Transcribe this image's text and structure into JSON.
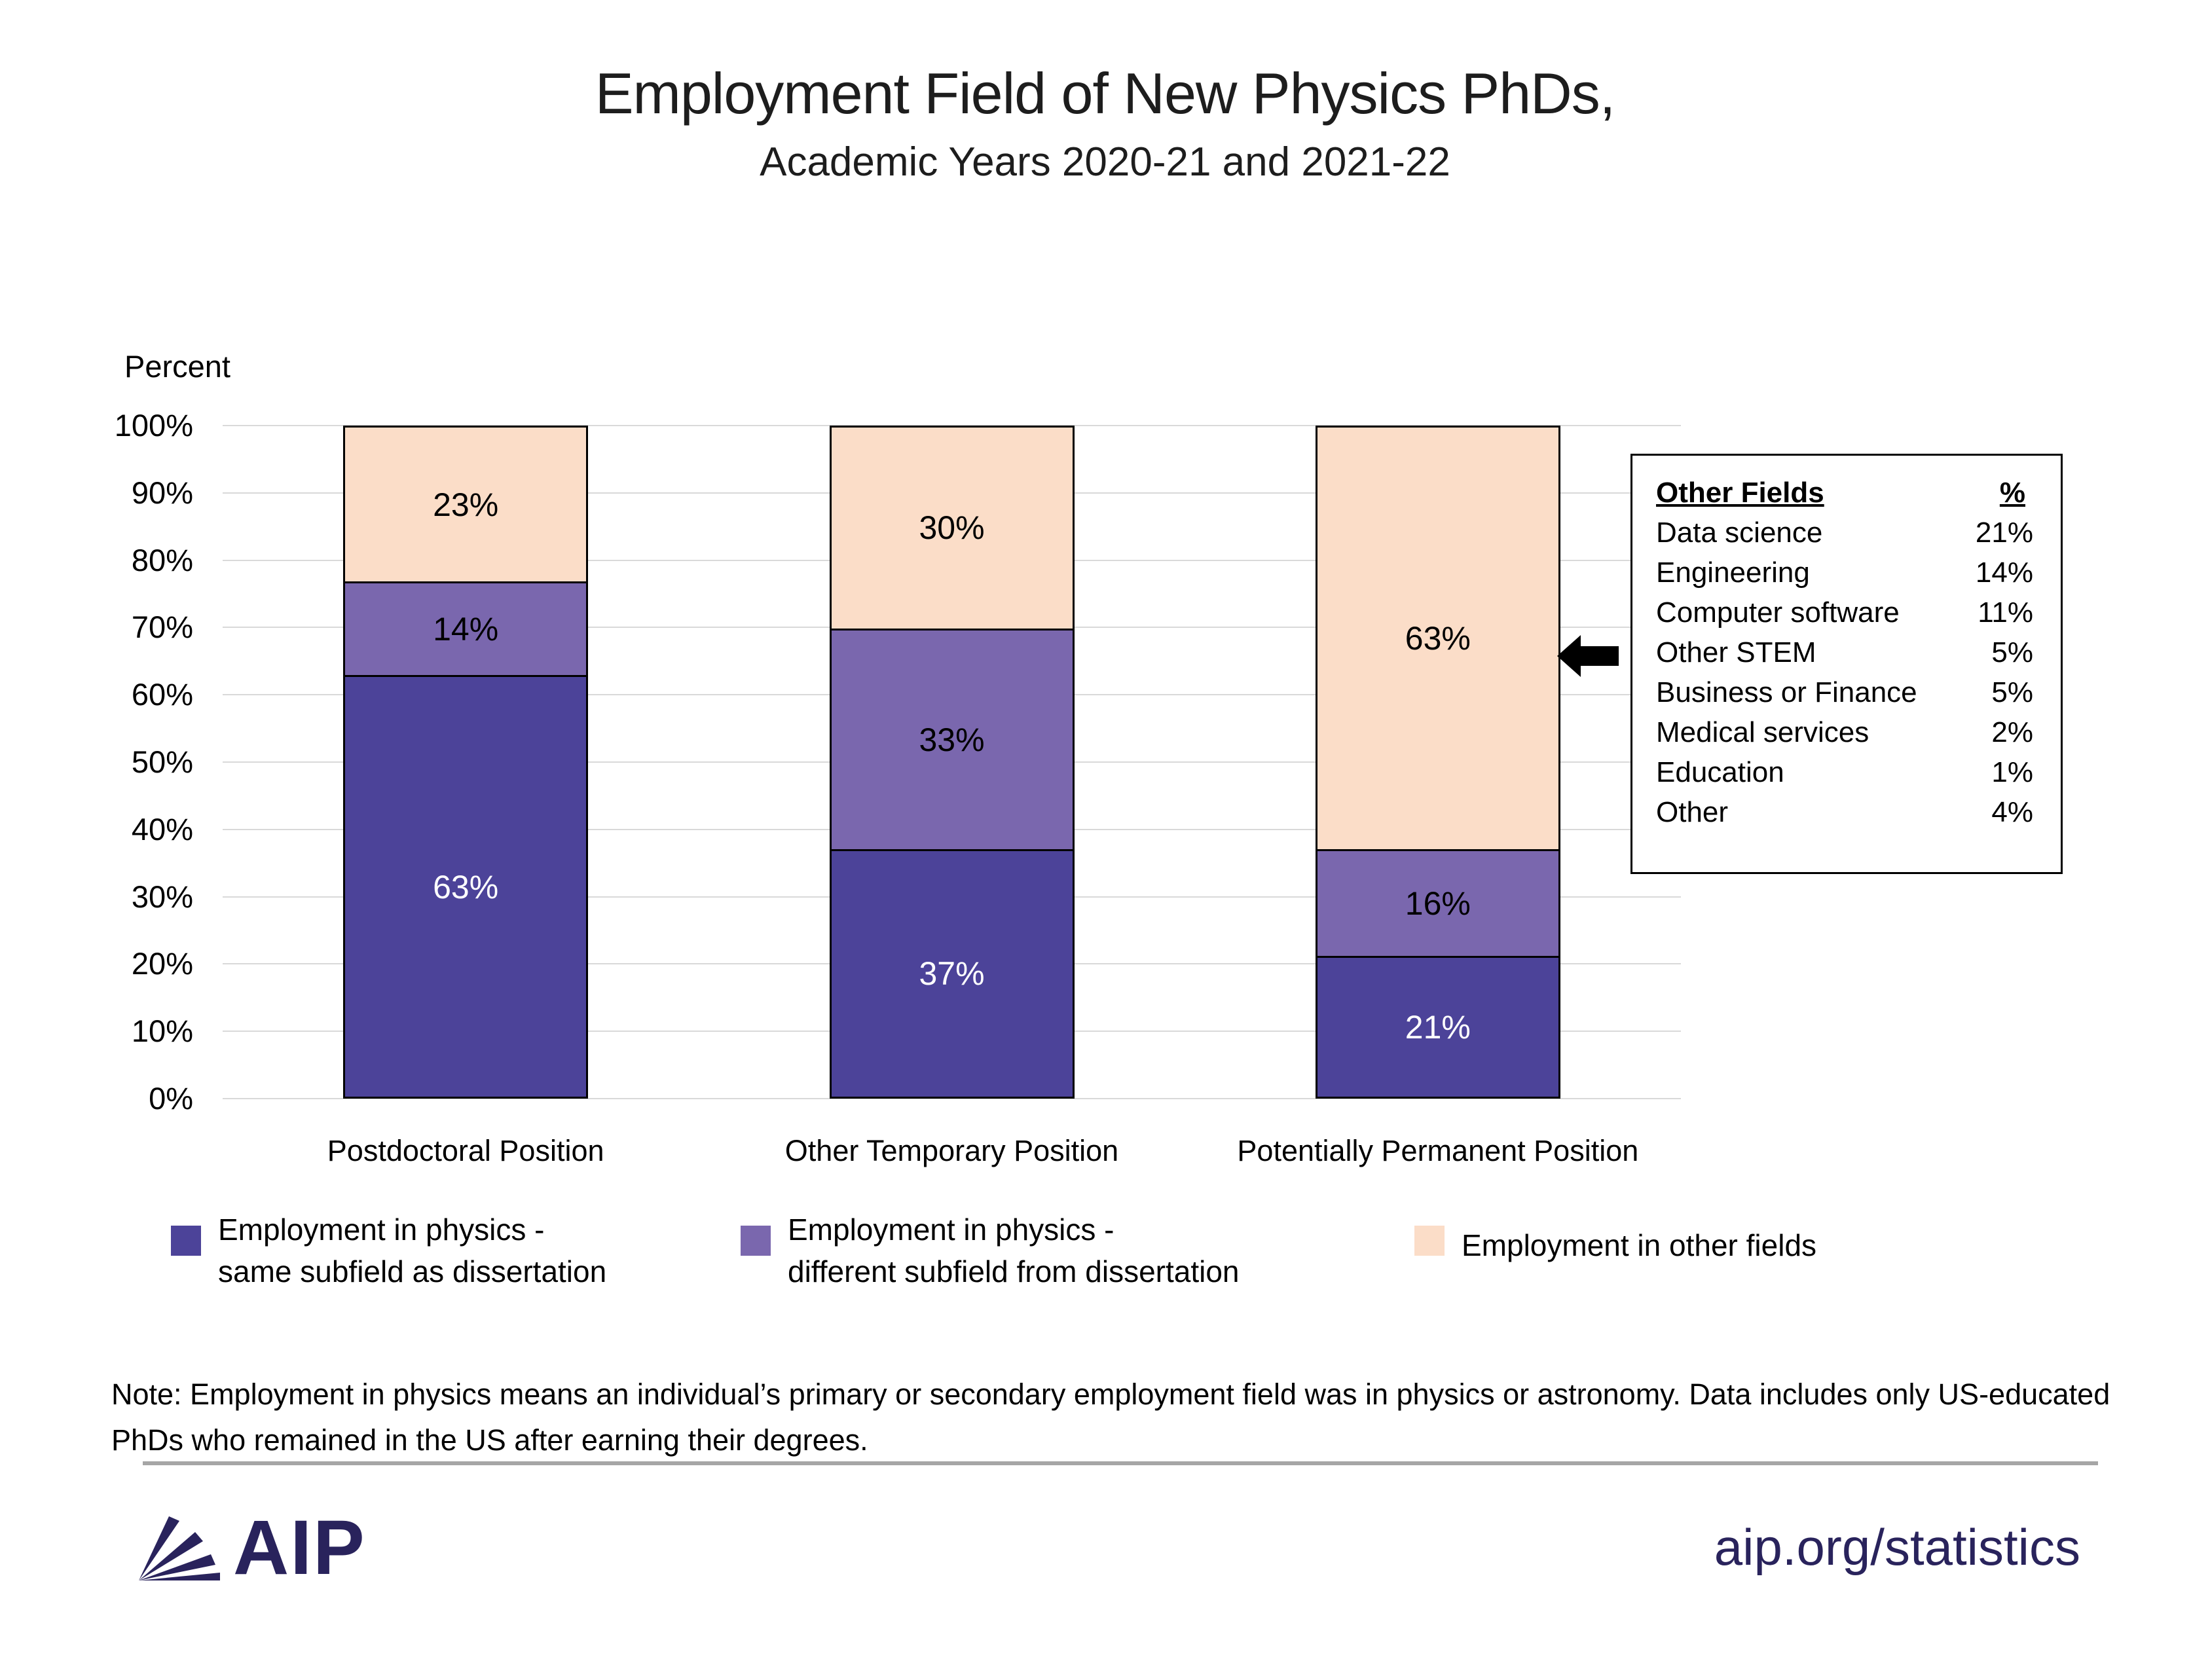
{
  "title": {
    "line1": "Employment Field of New Physics PhDs,",
    "line2": "Academic Years 2020-21 and 2021-22"
  },
  "axis_unit_label": "Percent",
  "chart_data": {
    "type": "bar",
    "stacked": true,
    "title": "Employment Field of New Physics PhDs, Academic Years 2020-21 and 2021-22",
    "ylabel": "Percent",
    "ylim": [
      0,
      100
    ],
    "ytick_step": 10,
    "yticks": [
      "0%",
      "10%",
      "20%",
      "30%",
      "40%",
      "50%",
      "60%",
      "70%",
      "80%",
      "90%",
      "100%"
    ],
    "grid": "horizontal",
    "value_suffix": "%",
    "legend_position": "bottom",
    "categories": [
      "Postdoctoral Position",
      "Other Temporary Position",
      "Potentially Permanent Position"
    ],
    "series": [
      {
        "name": "Employment in physics - same subfield as dissertation",
        "color": "#4C4399",
        "label_text_color": "#FFFFFF",
        "values": [
          63,
          37,
          21
        ]
      },
      {
        "name": "Employment in physics - different subfield from dissertation",
        "color": "#7A67AE",
        "label_text_color": "#000000",
        "values": [
          14,
          33,
          16
        ]
      },
      {
        "name": "Employment in other fields",
        "color": "#FBDDC8",
        "label_text_color": "#000000",
        "values": [
          23,
          30,
          63
        ]
      }
    ]
  },
  "other_fields_table": {
    "header": {
      "field": "Other Fields",
      "pct": "%"
    },
    "rows": [
      {
        "field": "Data science",
        "pct": "21%"
      },
      {
        "field": "Engineering",
        "pct": "14%"
      },
      {
        "field": "Computer software",
        "pct": "11%"
      },
      {
        "field": "Other STEM",
        "pct": "5%"
      },
      {
        "field": "Business or Finance",
        "pct": "5%"
      },
      {
        "field": "Medical services",
        "pct": "2%"
      },
      {
        "field": "Education",
        "pct": "1%"
      },
      {
        "field": "Other",
        "pct": "4%"
      }
    ]
  },
  "legend": [
    {
      "series_index": 0,
      "lines": [
        "Employment in physics -",
        "same subfield as dissertation"
      ]
    },
    {
      "series_index": 1,
      "lines": [
        "Employment in physics -",
        "different subfield from dissertation"
      ]
    },
    {
      "series_index": 2,
      "lines": [
        "Employment in other fields"
      ]
    }
  ],
  "note": "Note: Employment in physics means an individual’s primary or secondary employment field was in physics or astronomy. Data includes only US-educated PhDs who remained in the US after earning their degrees.",
  "footer": {
    "logo_text": "AIP",
    "link": "aip.org/statistics"
  },
  "colors": {
    "grid": "#D9D9D9",
    "bar_border": "#000000",
    "arrow": "#000000",
    "navy": "#29235C",
    "divider": "#A6A6A6"
  }
}
